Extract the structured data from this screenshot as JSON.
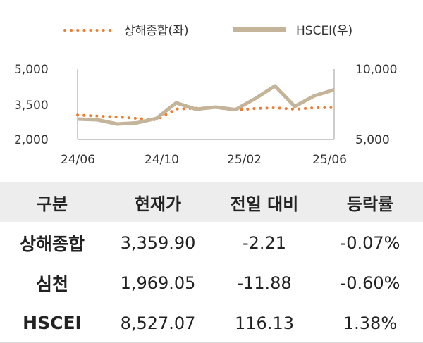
{
  "chart_data": {
    "type": "line",
    "x_ticks": [
      "24/06",
      "24/10",
      "25/02",
      "25/06"
    ],
    "y_left_ticks": [
      "5,000",
      "3,500",
      "2,000"
    ],
    "y_right_ticks": [
      "10,000",
      "5,000"
    ],
    "y_left_range": [
      2000,
      5000
    ],
    "y_right_range": [
      5000,
      10000
    ],
    "legend_position": "top",
    "grid": false,
    "x_range": [
      "2024-05",
      "2025-06"
    ],
    "series": [
      {
        "name": "상해종합(좌)",
        "axis": "left",
        "style": "dotted",
        "color": "#ed7d31",
        "points": [
          [
            "2024-05",
            3040
          ],
          [
            "2024-06",
            3000
          ],
          [
            "2024-07",
            2960
          ],
          [
            "2024-08",
            2900
          ],
          [
            "2024-09",
            2840
          ],
          [
            "2024-10",
            3300
          ],
          [
            "2024-11",
            3330
          ],
          [
            "2024-12",
            3360
          ],
          [
            "2025-01",
            3250
          ],
          [
            "2025-02",
            3320
          ],
          [
            "2025-03",
            3350
          ],
          [
            "2025-04",
            3290
          ],
          [
            "2025-05",
            3350
          ],
          [
            "2025-06",
            3360
          ]
        ]
      },
      {
        "name": "HSCEI(우)",
        "axis": "right",
        "style": "solid",
        "color": "#c4b49a",
        "points": [
          [
            "2024-05",
            6450
          ],
          [
            "2024-06",
            6400
          ],
          [
            "2024-07",
            6100
          ],
          [
            "2024-08",
            6180
          ],
          [
            "2024-09",
            6500
          ],
          [
            "2024-10",
            7600
          ],
          [
            "2024-11",
            7150
          ],
          [
            "2024-12",
            7300
          ],
          [
            "2025-01",
            7120
          ],
          [
            "2025-02",
            7900
          ],
          [
            "2025-03",
            8800
          ],
          [
            "2025-04",
            7350
          ],
          [
            "2025-05",
            8100
          ],
          [
            "2025-06",
            8530
          ]
        ]
      }
    ]
  },
  "table": {
    "headers": [
      "구분",
      "현재가",
      "전일 대비",
      "등락률"
    ],
    "rows": [
      [
        "상해종합",
        "3,359.90",
        "-2.21",
        "-0.07%"
      ],
      [
        "심천",
        "1,969.05",
        "-11.88",
        "-0.60%"
      ],
      [
        "HSCEI",
        "8,527.07",
        "116.13",
        "1.38%"
      ]
    ]
  }
}
